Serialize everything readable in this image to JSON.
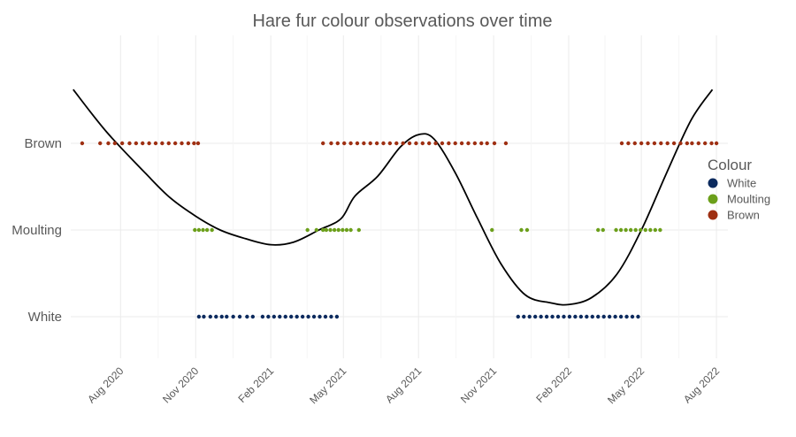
{
  "chart_data": {
    "type": "scatter",
    "title": "Hare fur colour observations over time",
    "xlabel": "",
    "ylabel": "",
    "categories": [
      "White",
      "Moulting",
      "Brown"
    ],
    "x_range": [
      "2020-06-01",
      "2022-08-15"
    ],
    "x_ticks": [
      {
        "date": "2020-08-01",
        "label": "Aug 2020"
      },
      {
        "date": "2020-11-01",
        "label": "Nov 2020"
      },
      {
        "date": "2021-02-01",
        "label": "Feb 2021"
      },
      {
        "date": "2021-05-01",
        "label": "May 2021"
      },
      {
        "date": "2021-08-01",
        "label": "Aug 2021"
      },
      {
        "date": "2021-11-01",
        "label": "Nov 2021"
      },
      {
        "date": "2022-02-01",
        "label": "Feb 2022"
      },
      {
        "date": "2022-05-01",
        "label": "May 2022"
      },
      {
        "date": "2022-08-01",
        "label": "Aug 2022"
      }
    ],
    "grid": true,
    "legend": {
      "title": "Colour",
      "position": "right",
      "entries": [
        {
          "label": "White",
          "color": "#0b2a5e"
        },
        {
          "label": "Moulting",
          "color": "#6b9f1a"
        },
        {
          "label": "Brown",
          "color": "#9e2f12"
        }
      ]
    },
    "series": [
      {
        "name": "Brown",
        "y": "Brown",
        "color": "#9e2f12",
        "x": [
          "2020-06-15",
          "2020-07-07",
          "2020-07-17",
          "2020-07-25",
          "2020-08-03",
          "2020-08-12",
          "2020-08-20",
          "2020-08-28",
          "2020-09-05",
          "2020-09-13",
          "2020-09-21",
          "2020-09-29",
          "2020-10-07",
          "2020-10-15",
          "2020-10-23",
          "2020-10-30",
          "2020-11-04",
          "2021-04-06",
          "2021-04-16",
          "2021-04-24",
          "2021-05-02",
          "2021-05-10",
          "2021-05-18",
          "2021-05-26",
          "2021-06-03",
          "2021-06-11",
          "2021-06-19",
          "2021-06-27",
          "2021-07-05",
          "2021-07-13",
          "2021-07-21",
          "2021-07-29",
          "2021-08-06",
          "2021-08-14",
          "2021-08-22",
          "2021-08-30",
          "2021-09-07",
          "2021-09-15",
          "2021-09-23",
          "2021-10-01",
          "2021-10-09",
          "2021-10-17",
          "2021-10-24",
          "2021-11-02",
          "2021-11-16",
          "2022-04-07",
          "2022-04-15",
          "2022-04-23",
          "2022-05-01",
          "2022-05-09",
          "2022-05-17",
          "2022-05-25",
          "2022-06-02",
          "2022-06-10",
          "2022-06-18",
          "2022-06-26",
          "2022-07-02",
          "2022-07-10",
          "2022-07-18",
          "2022-07-26",
          "2022-08-01"
        ]
      },
      {
        "name": "Moulting",
        "y": "Moulting",
        "color": "#6b9f1a",
        "x": [
          "2020-10-31",
          "2020-11-05",
          "2020-11-10",
          "2020-11-15",
          "2020-11-21",
          "2021-03-18",
          "2021-03-29",
          "2021-04-06",
          "2021-04-10",
          "2021-04-15",
          "2021-04-20",
          "2021-04-25",
          "2021-04-30",
          "2021-05-05",
          "2021-05-10",
          "2021-05-20",
          "2021-10-30",
          "2021-12-05",
          "2021-12-12",
          "2022-03-09",
          "2022-03-15",
          "2022-03-31",
          "2022-04-06",
          "2022-04-12",
          "2022-04-18",
          "2022-04-24",
          "2022-04-30",
          "2022-05-06",
          "2022-05-12",
          "2022-05-18",
          "2022-05-24"
        ]
      },
      {
        "name": "White",
        "y": "White",
        "color": "#0b2a5e",
        "x": [
          "2020-11-05",
          "2020-11-11",
          "2020-11-19",
          "2020-11-26",
          "2020-12-03",
          "2020-12-09",
          "2020-12-17",
          "2020-12-25",
          "2021-01-03",
          "2021-01-10",
          "2021-01-22",
          "2021-01-29",
          "2021-02-05",
          "2021-02-12",
          "2021-02-19",
          "2021-02-26",
          "2021-03-05",
          "2021-03-12",
          "2021-03-19",
          "2021-03-26",
          "2021-04-02",
          "2021-04-09",
          "2021-04-16",
          "2021-04-23",
          "2021-12-01",
          "2021-12-08",
          "2021-12-15",
          "2021-12-22",
          "2021-12-29",
          "2022-01-05",
          "2022-01-12",
          "2022-01-19",
          "2022-01-26",
          "2022-02-02",
          "2022-02-09",
          "2022-02-16",
          "2022-02-23",
          "2022-03-02",
          "2022-03-09",
          "2022-03-16",
          "2022-03-23",
          "2022-03-30",
          "2022-04-06",
          "2022-04-13",
          "2022-04-20",
          "2022-04-27"
        ]
      }
    ],
    "trend_line": {
      "color": "#000000",
      "points": [
        {
          "x": "2020-06-04",
          "y": 3.62
        },
        {
          "x": "2020-07-15",
          "y": 3.13
        },
        {
          "x": "2020-09-01",
          "y": 2.65
        },
        {
          "x": "2020-10-01",
          "y": 2.37
        },
        {
          "x": "2020-11-01",
          "y": 2.16
        },
        {
          "x": "2020-12-01",
          "y": 2.0
        },
        {
          "x": "2021-01-01",
          "y": 1.9
        },
        {
          "x": "2021-02-01",
          "y": 1.83
        },
        {
          "x": "2021-03-01",
          "y": 1.86
        },
        {
          "x": "2021-04-01",
          "y": 2.0
        },
        {
          "x": "2021-04-28",
          "y": 2.13
        },
        {
          "x": "2021-05-15",
          "y": 2.39
        },
        {
          "x": "2021-06-12",
          "y": 2.62
        },
        {
          "x": "2021-07-10",
          "y": 2.96
        },
        {
          "x": "2021-08-01",
          "y": 3.1
        },
        {
          "x": "2021-08-20",
          "y": 3.05
        },
        {
          "x": "2021-09-15",
          "y": 2.66
        },
        {
          "x": "2021-10-12",
          "y": 2.14
        },
        {
          "x": "2021-11-10",
          "y": 1.61
        },
        {
          "x": "2021-12-10",
          "y": 1.25
        },
        {
          "x": "2022-01-10",
          "y": 1.16
        },
        {
          "x": "2022-02-01",
          "y": 1.14
        },
        {
          "x": "2022-03-01",
          "y": 1.22
        },
        {
          "x": "2022-04-01",
          "y": 1.49
        },
        {
          "x": "2022-05-01",
          "y": 2.0
        },
        {
          "x": "2022-06-01",
          "y": 2.66
        },
        {
          "x": "2022-07-01",
          "y": 3.27
        },
        {
          "x": "2022-07-27",
          "y": 3.62
        }
      ]
    }
  }
}
